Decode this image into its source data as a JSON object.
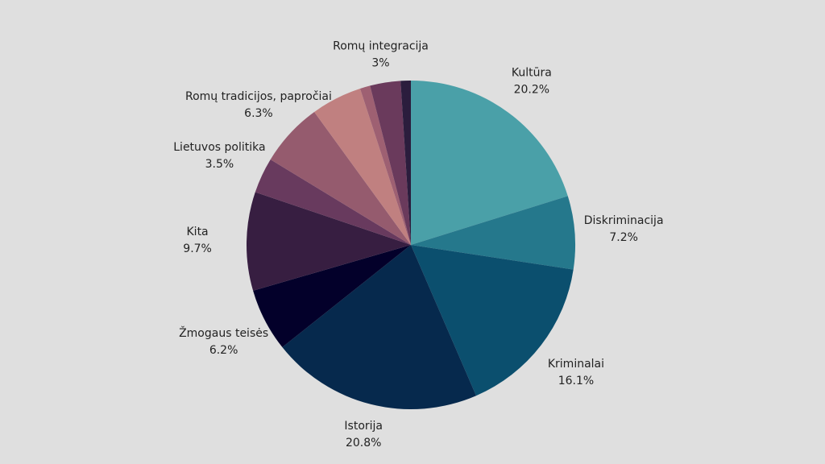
{
  "chart_data": {
    "type": "pie",
    "categories": [
      "Kultūra",
      "Diskriminacija",
      "Kriminalai",
      "Istorija",
      "Žmogaus teisės",
      "Kita",
      "Lietuvos politika",
      "Romų tradicijos, papročiai",
      null,
      null,
      "Romų integracija",
      null
    ],
    "values": [
      20.2,
      7.2,
      16.1,
      20.8,
      6.2,
      9.7,
      3.5,
      6.3,
      5,
      1,
      3,
      1
    ],
    "value_labels": [
      "20.2%",
      "7.2%",
      "16.1%",
      "20.8%",
      "6.2%",
      "9.7%",
      "3.5%",
      "6.3%",
      null,
      null,
      "3%",
      null
    ],
    "colors": [
      "#4aa0a8",
      "#25788c",
      "#0b4f6e",
      "#06294d",
      "#03002a",
      "#371e41",
      "#683a5e",
      "#955b6e",
      "#c08080",
      "#9e6072",
      "#6a3a5c",
      "#2b1d3d"
    ]
  }
}
